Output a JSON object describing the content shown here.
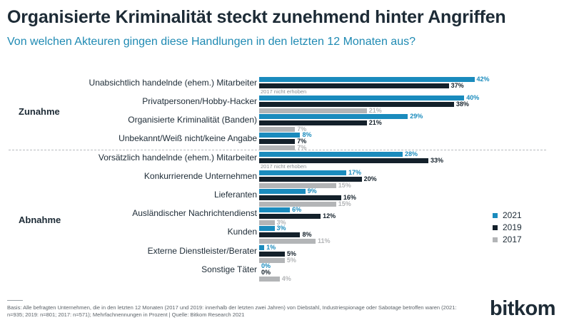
{
  "title": "Organisierte Kriminalität steckt zunehmend hinter Angriffen",
  "subtitle": "Von welchen Akteuren gingen diese Handlungen in den letzten 12 Monaten aus?",
  "groups": {
    "increase": "Zunahme",
    "decrease": "Abnahme"
  },
  "colors": {
    "2021": "#1a8bbd",
    "2019": "#14212b",
    "2017": "#b3b5b7"
  },
  "legend": [
    "2021",
    "2019",
    "2017"
  ],
  "footer": "Basis: Alle befragten Unternehmen, die in den letzten 12 Monaten (2017 und 2019: innerhalb der letzten zwei Jahren) von Diebstahl, Industriespionage oder Sabotage betroffen waren (2021: n=935; 2019: n=801; 2017: n=571); Mehrfachnennungen in Prozent | Quelle: Bitkom Research 2021",
  "logo": "bitkom",
  "chart_data": {
    "type": "bar",
    "orientation": "horizontal",
    "unit": "%",
    "categories": [
      "Unabsichtlich handelnde (ehem.) Mitarbeiter",
      "Privatpersonen/Hobby-Hacker",
      "Organisierte Kriminalität (Banden)",
      "Unbekannt/Weiß nicht/keine Angabe",
      "Vorsätzlich handelnde (ehem.) Mitarbeiter",
      "Konkurrierende Unternehmen",
      "Lieferanten",
      "Ausländischer Nachrichtendienst",
      "Kunden",
      "Externe Dienstleister/Berater",
      "Sonstige Täter"
    ],
    "series": [
      {
        "name": "2021",
        "values": [
          42,
          40,
          29,
          8,
          28,
          17,
          9,
          6,
          3,
          1,
          0
        ]
      },
      {
        "name": "2019",
        "values": [
          37,
          38,
          21,
          7,
          33,
          20,
          16,
          12,
          8,
          5,
          0
        ]
      },
      {
        "name": "2017",
        "values": [
          null,
          21,
          7,
          7,
          null,
          15,
          15,
          3,
          11,
          5,
          4
        ]
      }
    ],
    "missing_note": "2017 nicht erhoben",
    "group_labels": [
      "Zunahme",
      "Abnahme"
    ],
    "group_split_after_index": 3
  }
}
